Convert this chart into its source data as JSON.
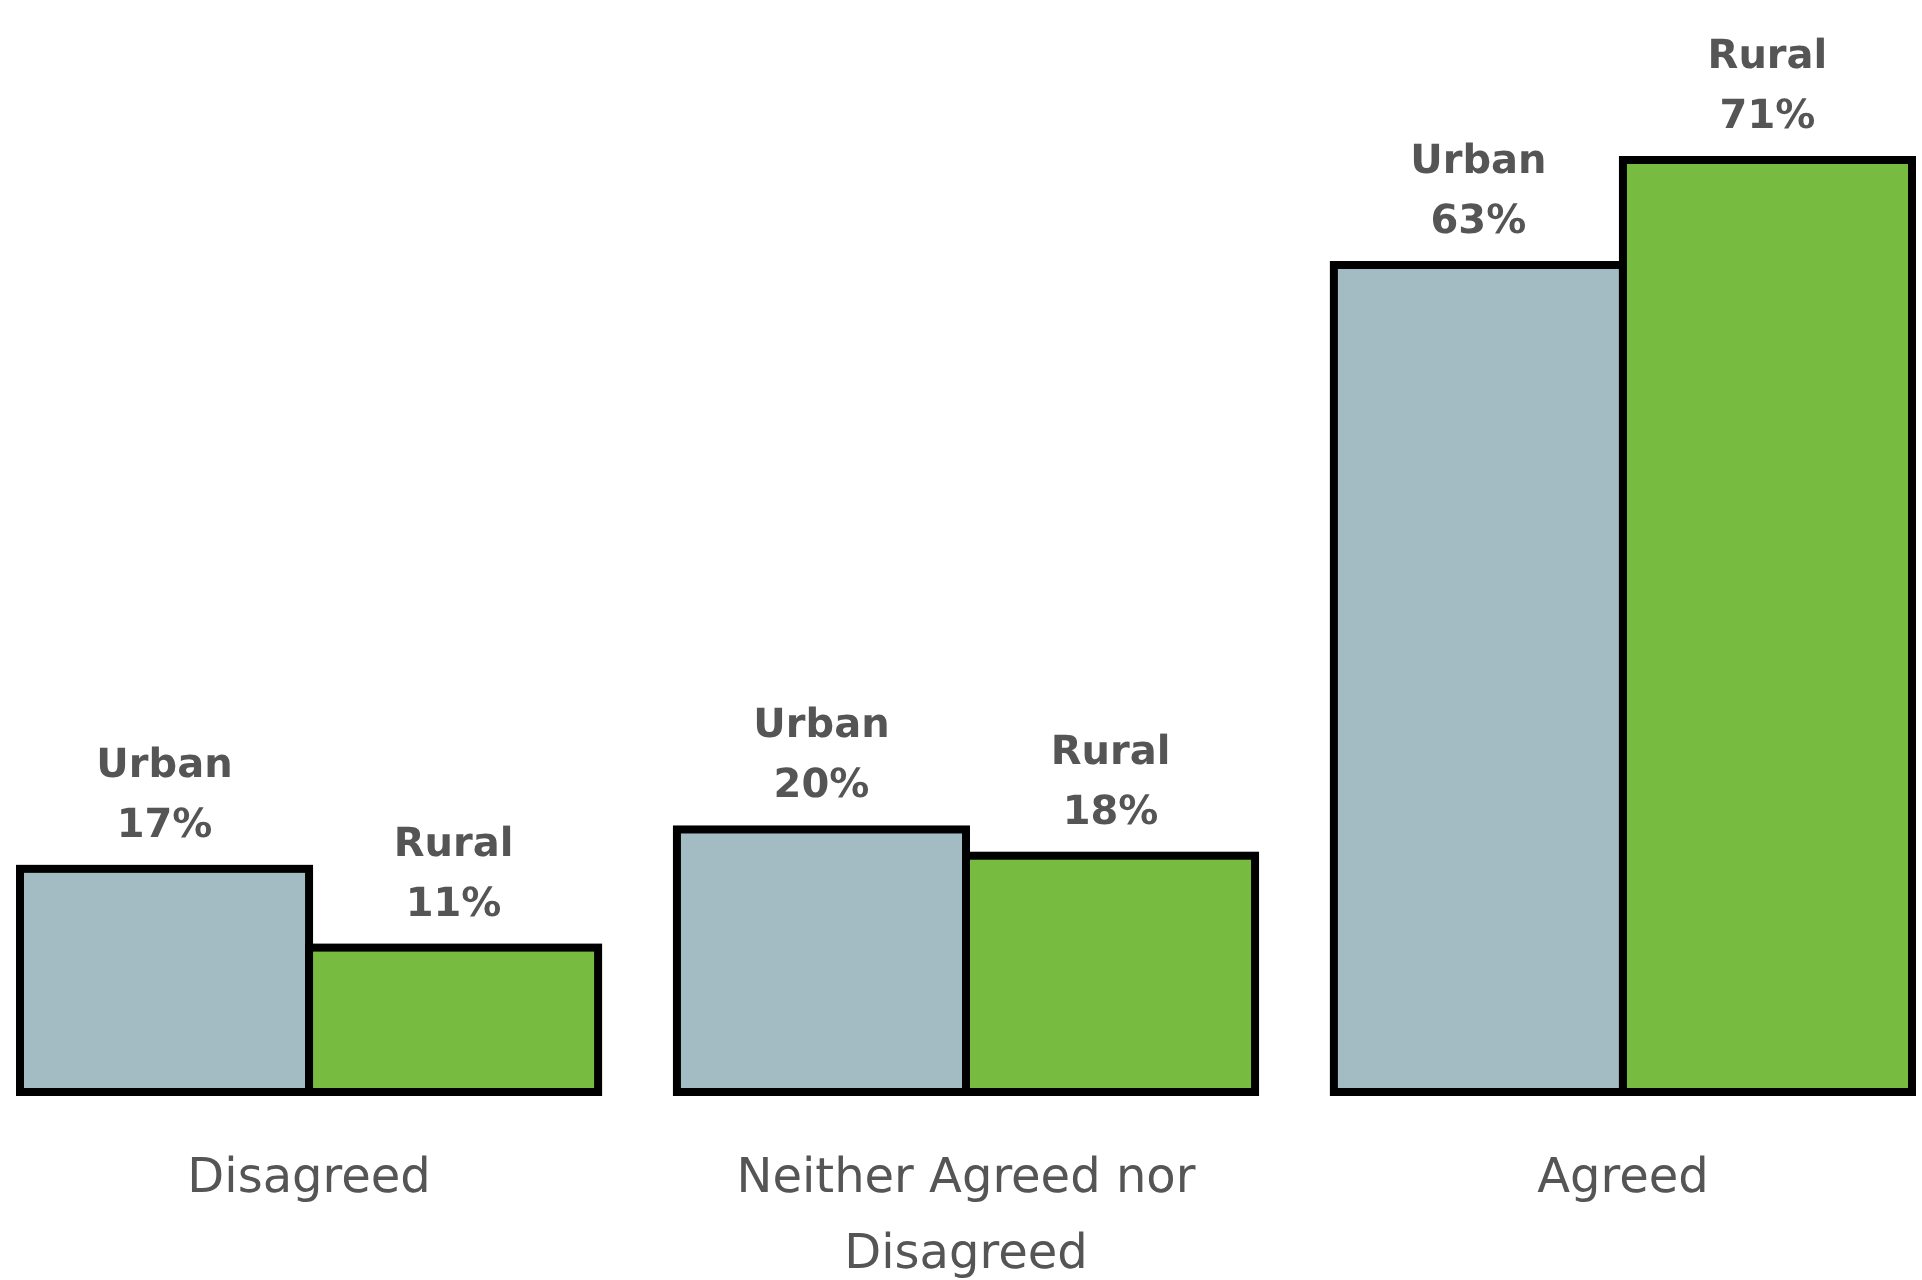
{
  "chart_data": {
    "type": "bar",
    "categories": [
      "Disagreed",
      "Neither Agreed nor Disagreed",
      "Agreed"
    ],
    "series": [
      {
        "name": "Urban",
        "color": "#a3bbc3",
        "values": [
          17,
          20,
          63
        ],
        "value_labels": [
          "17%",
          "20%",
          "63%"
        ]
      },
      {
        "name": "Rural",
        "color": "#77bb41",
        "values": [
          11,
          18,
          71
        ],
        "value_labels": [
          "11%",
          "18%",
          "71%"
        ]
      }
    ]
  }
}
